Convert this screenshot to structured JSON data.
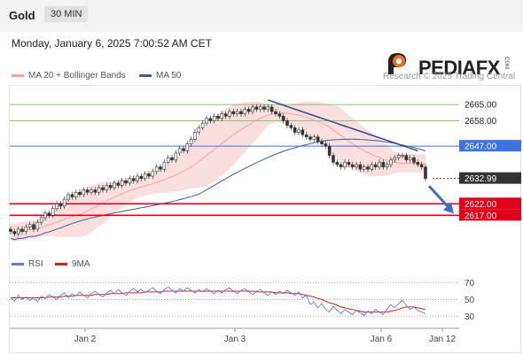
{
  "header": {
    "symbol": "Gold",
    "timeframe": "30 MIN"
  },
  "timestamp": "Monday, January 6, 2025 7:00:52 AM CET",
  "logo": {
    "name": "PEDIAFX",
    "mark": "COM"
  },
  "copyright": "Research © 2025 Trading Central",
  "colors": {
    "accent_orange": "#f26b1d",
    "support": "#e0001a",
    "pivot": "#3e73e0",
    "resistance": "#8dc26f",
    "bb": "#f9d2d2",
    "ma50": "#3a5f9e",
    "rsi": "#5b7fdb",
    "rsi_ma": "#d62020"
  },
  "chart_data": [
    {
      "type": "candlestick",
      "legend": [
        {
          "label": "MA 20 + Bollinger Bands",
          "color": "#f4a3a3"
        },
        {
          "label": "MA 50",
          "color": "#3a5f9e"
        }
      ],
      "ylim": [
        2606,
        2672
      ],
      "x_ticks": [
        "Jan 2",
        "Jan 3",
        "Jan 6",
        "Jan 12"
      ],
      "levels": [
        {
          "label": "2665.00",
          "value": 2665.0,
          "kind": "resistance"
        },
        {
          "label": "2658.00",
          "value": 2658.0,
          "kind": "resistance"
        },
        {
          "label": "2647.00",
          "value": 2647.0,
          "kind": "pivot"
        },
        {
          "label": "2632.99",
          "value": 2632.99,
          "kind": "last"
        },
        {
          "label": "2622.00",
          "value": 2622.0,
          "kind": "support"
        },
        {
          "label": "2617.00",
          "value": 2617.0,
          "kind": "support"
        }
      ],
      "close": [
        2610,
        2609,
        2611,
        2610,
        2612,
        2613,
        2611,
        2614,
        2616,
        2618,
        2617,
        2620,
        2622,
        2621,
        2624,
        2626,
        2625,
        2627,
        2626,
        2628,
        2627,
        2628,
        2627,
        2629,
        2628,
        2630,
        2629,
        2631,
        2630,
        2632,
        2631,
        2633,
        2632,
        2634,
        2633,
        2635,
        2634,
        2636,
        2638,
        2637,
        2640,
        2642,
        2641,
        2644,
        2646,
        2645,
        2648,
        2650,
        2653,
        2655,
        2657,
        2659,
        2658,
        2660,
        2659,
        2661,
        2660,
        2662,
        2661,
        2662,
        2661,
        2663,
        2662,
        2664,
        2663,
        2664,
        2663,
        2664,
        2662,
        2661,
        2660,
        2658,
        2656,
        2655,
        2653,
        2654,
        2652,
        2651,
        2650,
        2651,
        2649,
        2648,
        2647,
        2643,
        2640,
        2639,
        2638,
        2640,
        2639,
        2638,
        2639,
        2637,
        2638,
        2637,
        2639,
        2638,
        2640,
        2638,
        2639,
        2641,
        2642,
        2643,
        2643,
        2641,
        2642,
        2640,
        2639,
        2638,
        2633
      ],
      "trendline": {
        "from": 2667,
        "to": 2645
      },
      "forecast_arrow": {
        "from": 2632,
        "to": 2617
      }
    },
    {
      "type": "line",
      "legend": [
        {
          "label": "RSI",
          "color": "#5b7fdb"
        },
        {
          "label": "9MA",
          "color": "#d62020"
        }
      ],
      "ylim": [
        25,
        78
      ],
      "y_ticks": [
        70,
        50,
        30
      ],
      "rsi": [
        52,
        48,
        55,
        50,
        53,
        49,
        52,
        47,
        54,
        51,
        56,
        53,
        50,
        55,
        58,
        52,
        57,
        54,
        59,
        55,
        52,
        57,
        60,
        56,
        53,
        58,
        61,
        57,
        62,
        58,
        55,
        60,
        63,
        59,
        62,
        58,
        61,
        64,
        60,
        57,
        62,
        65,
        61,
        58,
        63,
        60,
        64,
        61,
        58,
        62,
        59,
        63,
        60,
        57,
        61,
        58,
        62,
        64,
        60,
        57,
        61,
        63,
        59,
        56,
        60,
        62,
        58,
        55,
        59,
        56,
        60,
        57,
        61,
        58,
        55,
        59,
        52,
        55,
        44,
        47,
        40,
        45,
        38,
        35,
        42,
        37,
        33,
        38,
        35,
        32,
        37,
        34,
        31,
        36,
        33,
        38,
        35,
        32,
        39,
        44,
        40,
        45,
        49,
        43,
        38,
        41,
        37,
        35,
        33
      ],
      "rsi_ma": [
        52,
        52,
        52,
        52,
        52,
        52,
        52,
        52,
        52,
        52,
        53,
        53,
        53,
        53,
        54,
        54,
        54,
        55,
        55,
        55,
        55,
        55,
        56,
        56,
        56,
        56,
        57,
        57,
        57,
        57,
        58,
        58,
        58,
        58,
        58,
        59,
        59,
        59,
        59,
        59,
        60,
        60,
        60,
        60,
        60,
        60,
        60,
        60,
        60,
        60,
        60,
        60,
        60,
        60,
        60,
        60,
        60,
        60,
        60,
        60,
        60,
        60,
        60,
        60,
        59,
        59,
        59,
        59,
        59,
        58,
        58,
        58,
        58,
        57,
        57,
        57,
        56,
        55,
        54,
        53,
        51,
        50,
        48,
        46,
        45,
        43,
        41,
        40,
        39,
        38,
        37,
        36,
        35,
        35,
        35,
        35,
        35,
        35,
        35,
        36,
        37,
        38,
        40,
        41,
        41,
        41,
        40,
        39,
        38
      ]
    }
  ]
}
